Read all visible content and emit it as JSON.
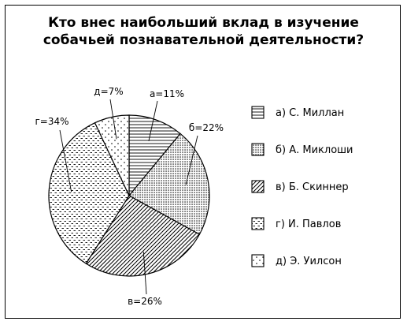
{
  "title_lines": [
    "Кто внес наибольший вклад в изучение",
    "собачьей познавательной деятельности?"
  ],
  "chart_data": {
    "type": "pie",
    "title": "Кто внес наибольший вклад в изучение собачьей познавательной деятельности?",
    "slices": [
      {
        "key": "a",
        "label": "а=11%",
        "legend": "а) С. Миллан",
        "value": 11,
        "pattern": "horizontal-lines"
      },
      {
        "key": "b",
        "label": "б=22%",
        "legend": "б) А. Миклоши",
        "value": 22,
        "pattern": "dense-dots"
      },
      {
        "key": "c",
        "label": "в=26%",
        "legend": "в) Б. Скиннер",
        "value": 26,
        "pattern": "diagonal-lines"
      },
      {
        "key": "d",
        "label": "г=34%",
        "legend": "г) И. Павлов",
        "value": 34,
        "pattern": "dashes"
      },
      {
        "key": "e",
        "label": "д=7%",
        "legend": "д) Э. Уилсон",
        "value": 7,
        "pattern": "sparse-dots"
      }
    ],
    "legend_placement": "right",
    "start": "top",
    "direction": "clockwise"
  }
}
